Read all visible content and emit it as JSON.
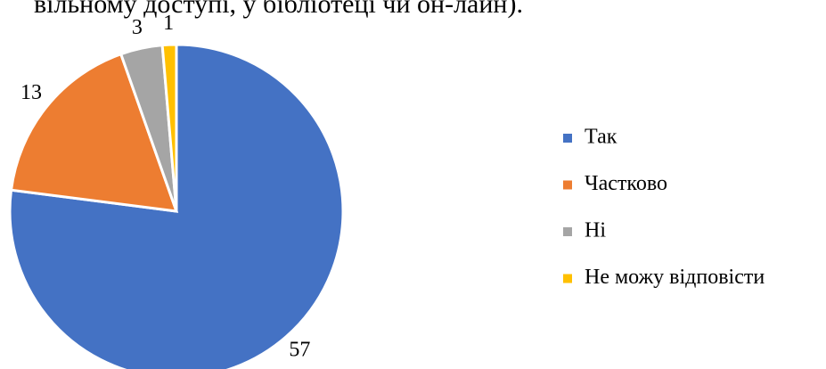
{
  "chart_data": {
    "type": "pie",
    "title": "вільному доступі, у бібліотеці чи он-лайн).",
    "categories": [
      "Так",
      "Частково",
      "Ні",
      "Не можу відповісти"
    ],
    "values": [
      57,
      13,
      3,
      1
    ],
    "colors": [
      "#4472c4",
      "#ed7d31",
      "#a5a5a5",
      "#ffc000"
    ],
    "legend": "right"
  }
}
